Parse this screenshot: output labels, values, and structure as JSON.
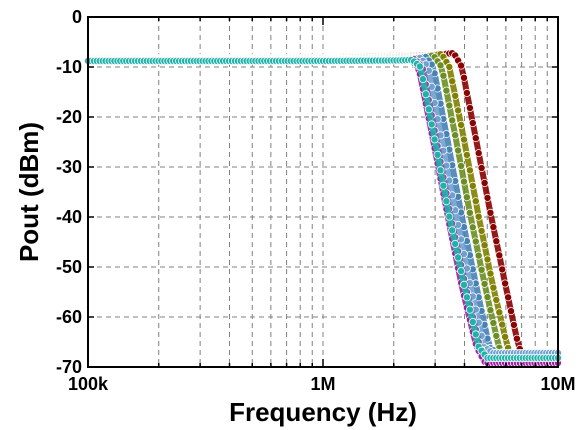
{
  "chart_data": {
    "type": "line",
    "xlabel": "Frequency (Hz)",
    "ylabel": "Pout (dBm)",
    "x_scale": "log",
    "xlim": [
      100000,
      10000000
    ],
    "ylim": [
      -70,
      0
    ],
    "x_tick_values": [
      100000,
      1000000,
      10000000
    ],
    "x_tick_labels": [
      "100k",
      "1M",
      "10M"
    ],
    "y_tick_values": [
      0,
      -10,
      -20,
      -30,
      -40,
      -50,
      -60,
      -70
    ],
    "y_tick_labels": [
      "0",
      "-10",
      "-20",
      "-30",
      "-40",
      "-50",
      "-60",
      "-70"
    ],
    "grid": true,
    "series": [
      {
        "color": "#8b0000",
        "values": [
          [
            100000,
            -8.2
          ],
          [
            1000000,
            -8.1
          ],
          [
            3000000,
            -7.6
          ],
          [
            3600000,
            -7.2
          ],
          [
            3900000,
            -10
          ],
          [
            4500000,
            -25
          ],
          [
            5200000,
            -40
          ],
          [
            6000000,
            -54
          ],
          [
            6800000,
            -66
          ],
          [
            7300000,
            -68.5
          ],
          [
            10000000,
            -68.5
          ]
        ]
      },
      {
        "color": "#808000",
        "values": [
          [
            100000,
            -8.3
          ],
          [
            1000000,
            -8.2
          ],
          [
            2800000,
            -7.8
          ],
          [
            3200000,
            -7.4
          ],
          [
            3450000,
            -10
          ],
          [
            4000000,
            -25
          ],
          [
            4600000,
            -40
          ],
          [
            5300000,
            -54
          ],
          [
            6100000,
            -66
          ],
          [
            6600000,
            -68.7
          ],
          [
            10000000,
            -68.7
          ]
        ]
      },
      {
        "color": "#6b8e23",
        "values": [
          [
            100000,
            -8.4
          ],
          [
            1000000,
            -8.3
          ],
          [
            2600000,
            -8.0
          ],
          [
            2950000,
            -7.7
          ],
          [
            3200000,
            -10
          ],
          [
            3700000,
            -25
          ],
          [
            4250000,
            -40
          ],
          [
            4900000,
            -54
          ],
          [
            5600000,
            -66
          ],
          [
            6100000,
            -68.8
          ],
          [
            10000000,
            -68.8
          ]
        ]
      },
      {
        "color": "#4682b4",
        "values": [
          [
            100000,
            -8.5
          ],
          [
            1000000,
            -8.4
          ],
          [
            2400000,
            -8.2
          ],
          [
            2750000,
            -8.0
          ],
          [
            2950000,
            -10
          ],
          [
            3400000,
            -25
          ],
          [
            3900000,
            -40
          ],
          [
            4500000,
            -54
          ],
          [
            5100000,
            -66
          ],
          [
            5600000,
            -67.5
          ],
          [
            10000000,
            -67.5
          ]
        ]
      },
      {
        "color": "#6fa0d0",
        "values": [
          [
            100000,
            -8.6
          ],
          [
            1000000,
            -8.5
          ],
          [
            2250000,
            -8.3
          ],
          [
            2600000,
            -8.2
          ],
          [
            2800000,
            -10
          ],
          [
            3200000,
            -25
          ],
          [
            3700000,
            -40
          ],
          [
            4250000,
            -54
          ],
          [
            4850000,
            -66
          ],
          [
            5300000,
            -67.2
          ],
          [
            10000000,
            -67.2
          ]
        ]
      },
      {
        "color": "#8a4fa8",
        "values": [
          [
            100000,
            -8.7
          ],
          [
            1000000,
            -8.6
          ],
          [
            2100000,
            -8.5
          ],
          [
            2450000,
            -8.4
          ],
          [
            2650000,
            -10
          ],
          [
            3050000,
            -25
          ],
          [
            3500000,
            -40
          ],
          [
            4050000,
            -54
          ],
          [
            4650000,
            -66
          ],
          [
            5050000,
            -68.8
          ],
          [
            10000000,
            -68.8
          ]
        ]
      },
      {
        "color": "#a020a0",
        "values": [
          [
            100000,
            -8.7
          ],
          [
            1000000,
            -8.7
          ],
          [
            2000000,
            -8.6
          ],
          [
            2350000,
            -8.5
          ],
          [
            2550000,
            -10
          ],
          [
            2950000,
            -25
          ],
          [
            3400000,
            -40
          ],
          [
            3900000,
            -54
          ],
          [
            4500000,
            -66
          ],
          [
            4900000,
            -69.2
          ],
          [
            10000000,
            -69.2
          ]
        ]
      },
      {
        "color": "#20b2aa",
        "values": [
          [
            100000,
            -8.8
          ],
          [
            1000000,
            -8.8
          ],
          [
            2050000,
            -8.7
          ],
          [
            2400000,
            -8.6
          ],
          [
            2600000,
            -10
          ],
          [
            3000000,
            -25
          ],
          [
            3450000,
            -40
          ],
          [
            4000000,
            -54
          ],
          [
            4600000,
            -66
          ],
          [
            5000000,
            -68.2
          ],
          [
            10000000,
            -68.2
          ]
        ]
      }
    ]
  }
}
